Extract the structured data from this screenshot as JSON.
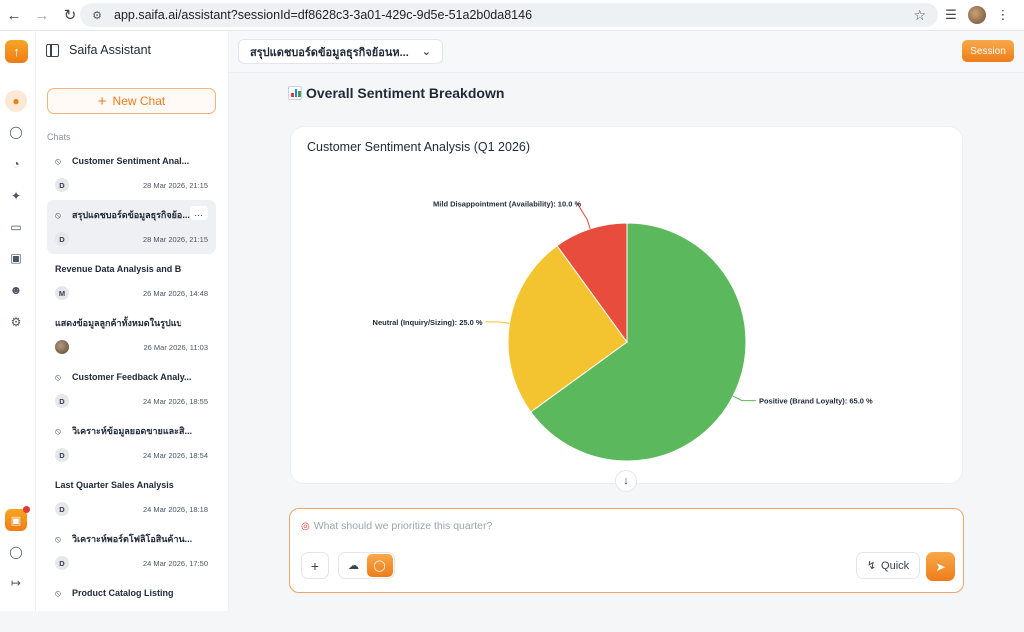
{
  "browser": {
    "url": "app.saifa.ai/assistant?sessionId=df8628c3-3a01-429c-9d5e-51a2b0da8146"
  },
  "sidebar": {
    "title": "Saifa Assistant",
    "new_chat_label": "New Chat",
    "chats_label": "Chats",
    "chats": [
      {
        "title": "Customer Sentiment Anal...",
        "avatar": "D",
        "date": "28 Mar 2026, 21:15",
        "hidden_icon": true,
        "selected": false
      },
      {
        "title": "สรุปแดชบอร์ดข้อมูลธุรกิจย้อ...",
        "avatar": "D",
        "date": "28 Mar 2026, 21:15",
        "hidden_icon": true,
        "selected": true
      },
      {
        "title": "Revenue Data Analysis and Bre...",
        "avatar": "M",
        "date": "26 Mar 2026, 14:48",
        "hidden_icon": false,
        "selected": false
      },
      {
        "title": "แสดงข้อมูลลูกค้าทั้งหมดในรูปแบ...",
        "avatar": "",
        "date": "26 Mar 2026, 11:03",
        "hidden_icon": false,
        "selected": false,
        "photo": true
      },
      {
        "title": "Customer Feedback Analy...",
        "avatar": "D",
        "date": "24 Mar 2026, 18:55",
        "hidden_icon": true,
        "selected": false
      },
      {
        "title": "วิเคราะห์ข้อมูลยอดขายและสิ...",
        "avatar": "D",
        "date": "24 Mar 2026, 18:54",
        "hidden_icon": true,
        "selected": false
      },
      {
        "title": "Last Quarter Sales Analysis",
        "avatar": "D",
        "date": "24 Mar 2026, 18:18",
        "hidden_icon": false,
        "selected": false
      },
      {
        "title": "วิเคราะห์พอร์ตโฟลิโอสินค้าน...",
        "avatar": "D",
        "date": "24 Mar 2026, 17:50",
        "hidden_icon": true,
        "selected": false
      },
      {
        "title": "Product Catalog Listing",
        "avatar": "",
        "date": "",
        "hidden_icon": true,
        "selected": false
      }
    ]
  },
  "topbar": {
    "conversation_title": "สรุปแดชบอร์ดข้อมูลธุรกิจย้อนห...",
    "session_label": "Session"
  },
  "content": {
    "section_title": "Overall Sentiment Breakdown"
  },
  "chart_data": {
    "type": "pie",
    "title": "Customer Sentiment Analysis (Q1 2026)",
    "slices": [
      {
        "label": "Positive (Brand Loyalty): 65.0 %",
        "value": 65.0,
        "color": "#5cb85c"
      },
      {
        "label": "Neutral (Inquiry/Sizing): 25.0 %",
        "value": 25.0,
        "color": "#f4c430"
      },
      {
        "label": "Mild Disappointment (Availability): 10.0 %",
        "value": 10.0,
        "color": "#e74c3c"
      }
    ]
  },
  "composer": {
    "placeholder": "What should we prioritize this quarter?",
    "quick_label": "Quick"
  },
  "colors": {
    "accent": "#ef7c1a"
  }
}
